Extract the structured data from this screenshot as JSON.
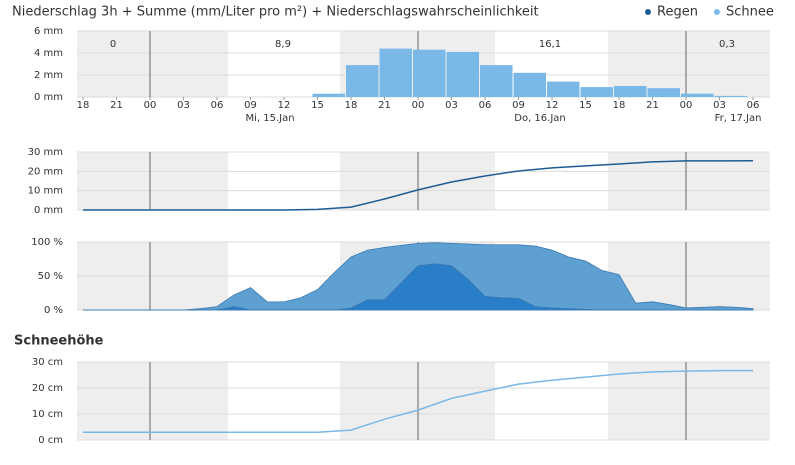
{
  "chart_data": [
    {
      "type": "bar",
      "title": "Niederschlag 3h + Summe (mm/Liter pro m²) + Niederschlagswahrscheinlichkeit",
      "legend": [
        {
          "name": "Regen",
          "color": "#1f5b94"
        },
        {
          "name": "Schnee",
          "color": "#7ab8e8"
        }
      ],
      "categories": [
        "18",
        "21",
        "00",
        "03",
        "06",
        "09",
        "12",
        "15",
        "18",
        "21",
        "00",
        "03",
        "06",
        "09",
        "12",
        "15",
        "18",
        "21",
        "00",
        "03",
        "06"
      ],
      "day_labels": [
        "Mi, 15.Jan",
        "Do, 16.Jan",
        "Fr, 17.Jan"
      ],
      "daily_sums": [
        "0",
        "8,9",
        "16,1",
        "0,3"
      ],
      "series": [
        {
          "name": "Schnee",
          "color": "#7ab8e8",
          "values": [
            0,
            0,
            0,
            0,
            0,
            0,
            0,
            0.3,
            2.9,
            4.4,
            4.3,
            4.1,
            2.9,
            2.2,
            1.4,
            0.9,
            1.0,
            0.8,
            0.3,
            0.1,
            0
          ]
        }
      ],
      "ylim": [
        0,
        6
      ],
      "yticks": [
        {
          "value": 6,
          "label": "6 mm"
        },
        {
          "value": 4,
          "label": "4 mm"
        },
        {
          "value": 2,
          "label": "2 mm"
        },
        {
          "value": 0,
          "label": "0 mm"
        }
      ],
      "grid": true
    },
    {
      "type": "line",
      "series": [
        {
          "color": "#1f5b94",
          "values": [
            0,
            0,
            0,
            0,
            0,
            0,
            0,
            0.3,
            1.5,
            5.7,
            10.4,
            14.5,
            17.6,
            20.2,
            21.8,
            22.8,
            23.8,
            24.9,
            25.4,
            25.4,
            25.5
          ]
        }
      ],
      "ylim": [
        0,
        30
      ],
      "yticks": [
        {
          "value": 30,
          "label": "30 mm"
        },
        {
          "value": 20,
          "label": "20 mm"
        },
        {
          "value": 10,
          "label": "10 mm"
        },
        {
          "value": 0,
          "label": "0 mm"
        }
      ],
      "grid": true
    },
    {
      "type": "area",
      "series": [
        {
          "color": "#5fa0d2",
          "values": [
            0,
            0,
            0,
            0,
            0,
            0,
            0,
            2,
            5,
            22,
            33,
            12,
            12,
            18,
            30,
            55,
            78,
            88,
            92,
            95,
            98,
            99,
            98,
            97,
            96,
            96,
            96,
            94,
            88,
            78,
            72,
            58,
            52,
            10,
            12,
            8,
            3,
            4,
            5,
            4,
            2
          ]
        },
        {
          "color": "#2a7dc8",
          "values": [
            0,
            0,
            0,
            0,
            0,
            0,
            0,
            0,
            0,
            5,
            0,
            0,
            0,
            0,
            0,
            0,
            3,
            15,
            15,
            40,
            65,
            68,
            65,
            45,
            20,
            18,
            17,
            5,
            3,
            2,
            1,
            0,
            0,
            0,
            0,
            0,
            0,
            0,
            0,
            0,
            0
          ]
        }
      ],
      "ylim": [
        0,
        100
      ],
      "yticks": [
        {
          "value": 100,
          "label": "100 %"
        },
        {
          "value": 50,
          "label": "50 %"
        },
        {
          "value": 0,
          "label": "0 %"
        }
      ],
      "grid": true
    },
    {
      "type": "line",
      "title": "Schneehöhe",
      "series": [
        {
          "color": "#7ab8e8",
          "values": [
            3,
            3,
            3,
            3,
            3,
            3,
            3,
            3,
            3.8,
            8,
            11.5,
            16,
            18.8,
            21.5,
            23,
            24.2,
            25.4,
            26.2,
            26.5,
            26.7,
            26.7
          ]
        }
      ],
      "ylim": [
        0,
        30
      ],
      "yticks": [
        {
          "value": 30,
          "label": "30 cm"
        },
        {
          "value": 20,
          "label": "20 cm"
        },
        {
          "value": 10,
          "label": "10 cm"
        },
        {
          "value": 0,
          "label": "0 cm"
        }
      ],
      "grid": true
    }
  ]
}
